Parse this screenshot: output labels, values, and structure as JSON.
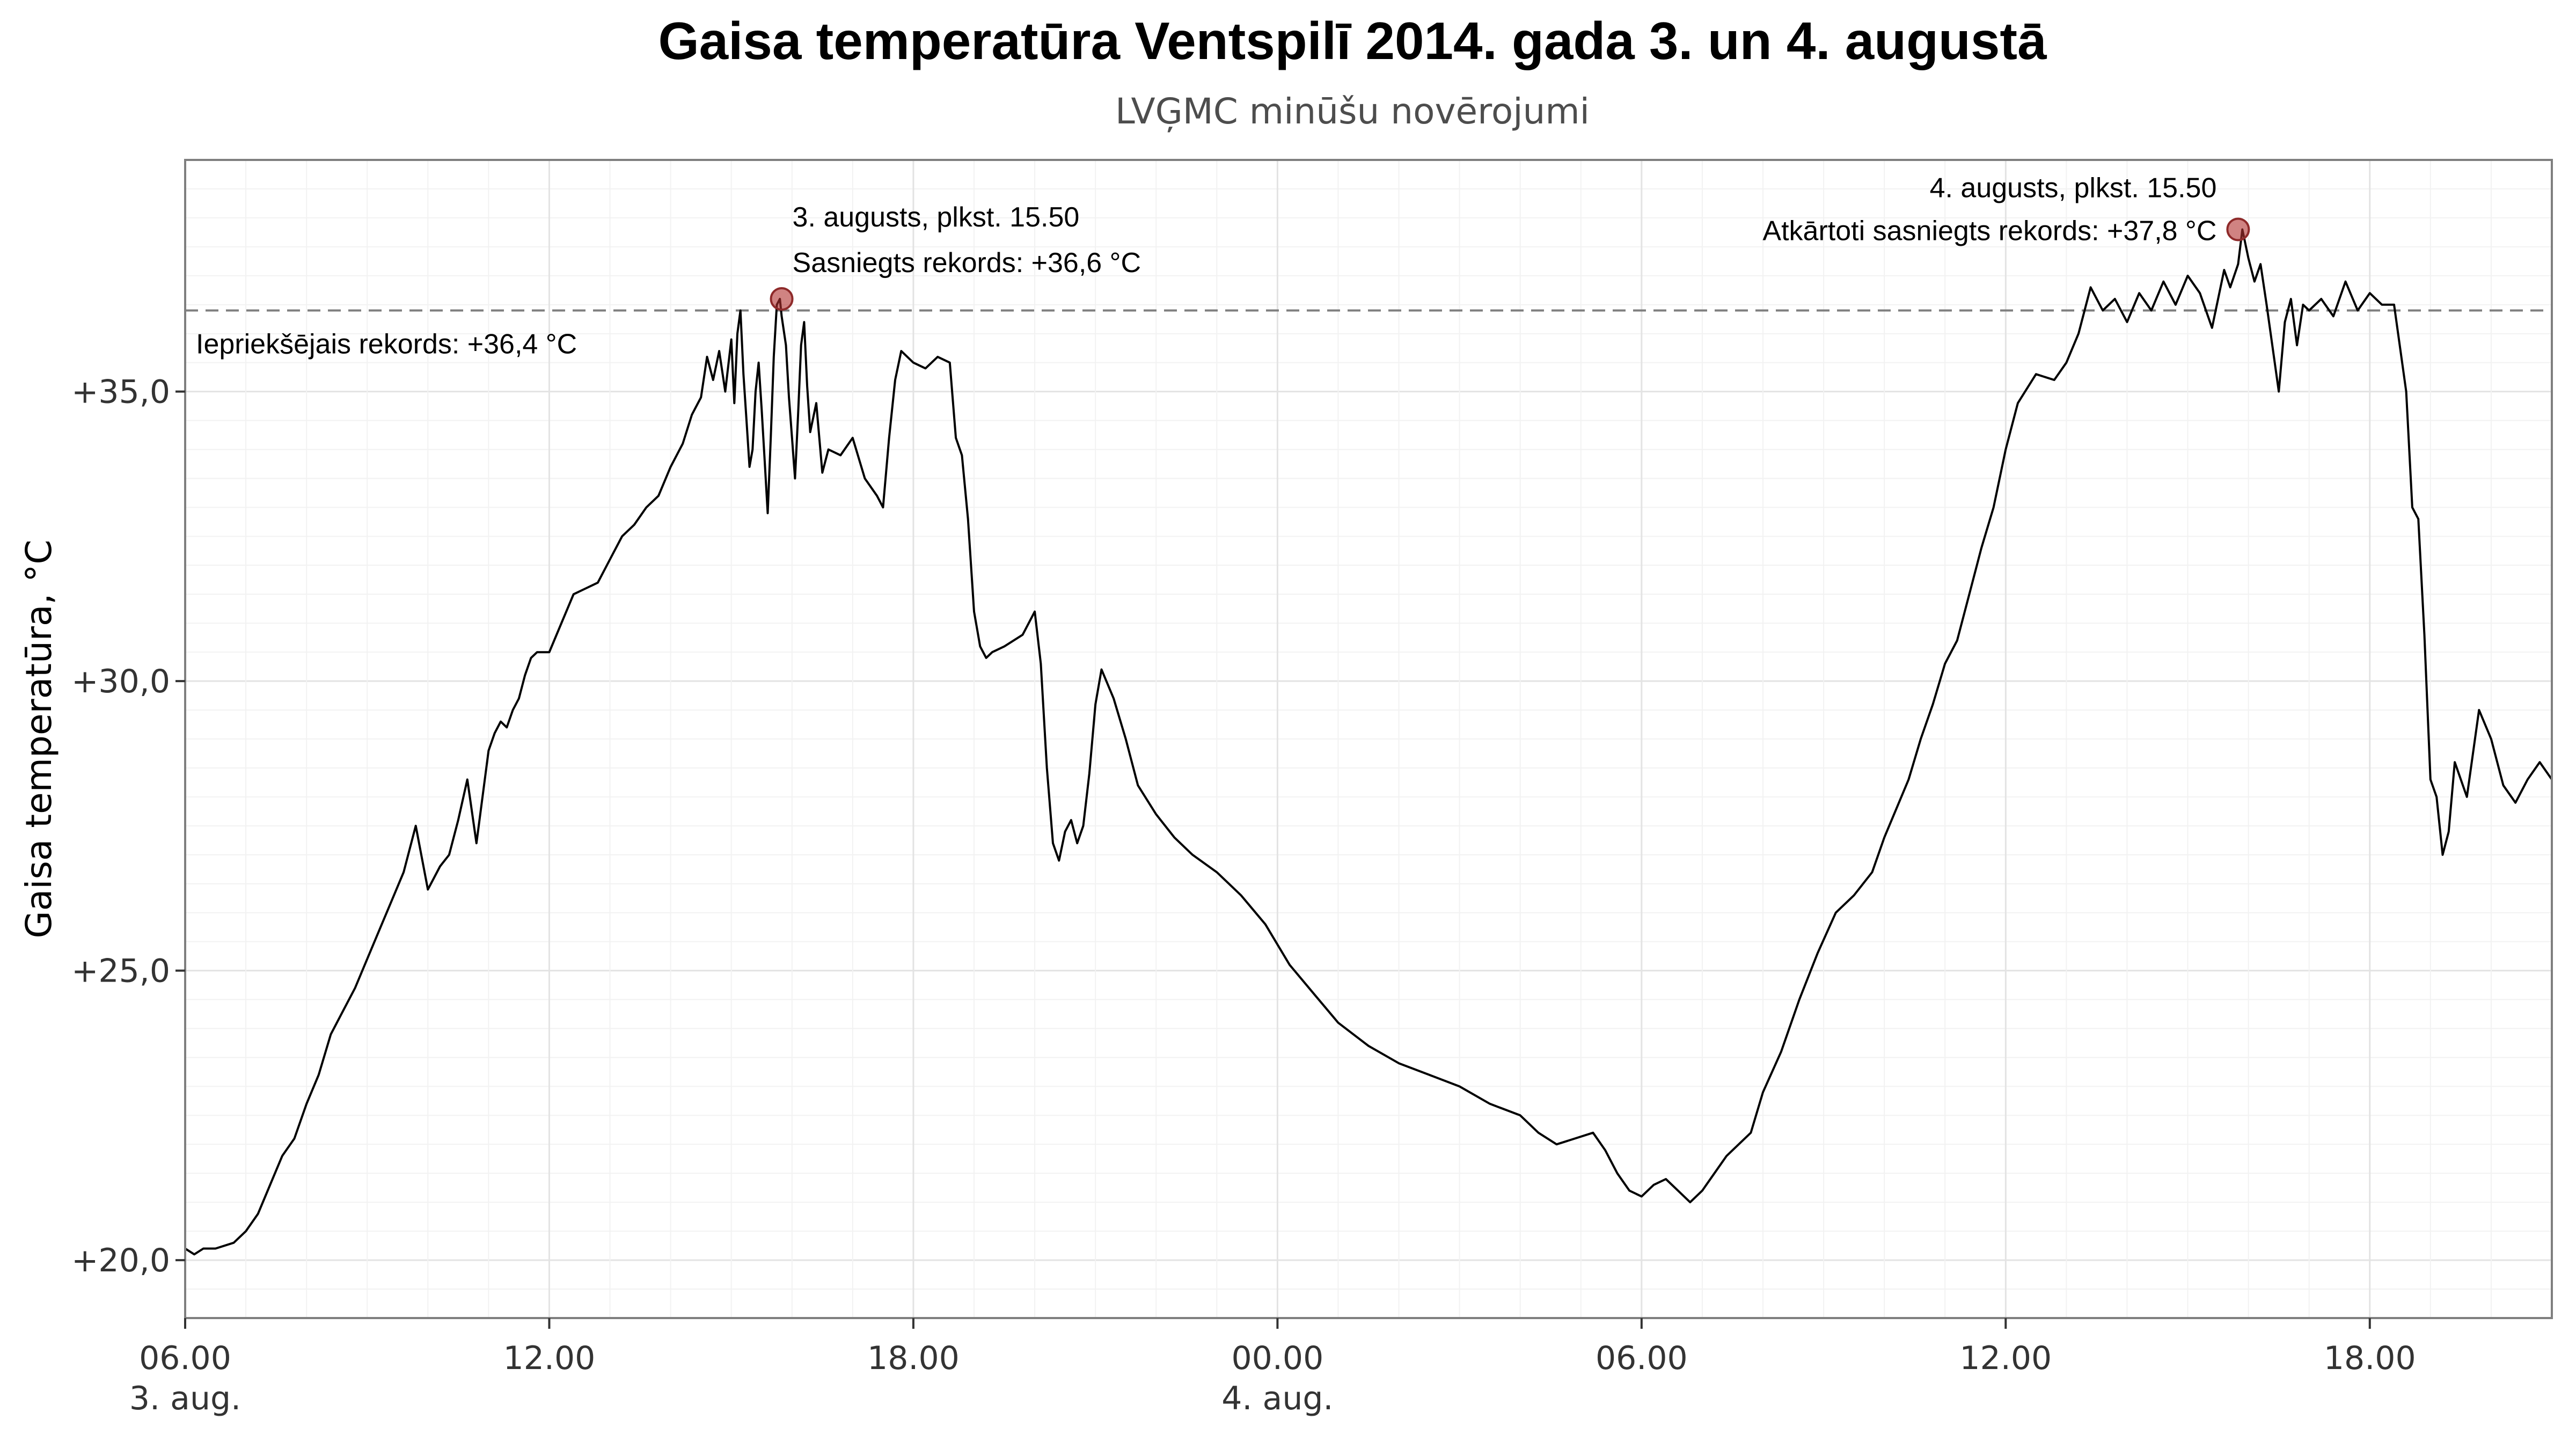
{
  "chart_data": {
    "type": "line",
    "title": "Gaisa temperatūra Ventspilī 2014. gada 3. un 4. augustā",
    "subtitle": "LVĢMC minūšu novērojumi",
    "xlabel": "",
    "ylabel": "Gaisa temperatūra, °C",
    "x_unit": "hours since 3. aug. 00.00",
    "xlim": [
      6.0,
      45.0
    ],
    "ylim": [
      19.0,
      39.0
    ],
    "grid": true,
    "y_ticks": [
      {
        "value": 20,
        "label": "+20,0"
      },
      {
        "value": 25,
        "label": "+25,0"
      },
      {
        "value": 30,
        "label": "+30,0"
      },
      {
        "value": 35,
        "label": "+35,0"
      }
    ],
    "x_ticks": [
      {
        "value": 6,
        "label": "06.00",
        "sublabel": "3. aug."
      },
      {
        "value": 12,
        "label": "12.00",
        "sublabel": ""
      },
      {
        "value": 18,
        "label": "18.00",
        "sublabel": ""
      },
      {
        "value": 24,
        "label": "00.00",
        "sublabel": "4. aug."
      },
      {
        "value": 30,
        "label": "06.00",
        "sublabel": ""
      },
      {
        "value": 36,
        "label": "12.00",
        "sublabel": ""
      },
      {
        "value": 42,
        "label": "18.00",
        "sublabel": ""
      }
    ],
    "reference_line": {
      "value": 36.4,
      "label": "Iepriekšējais rekords: +36,4 °C"
    },
    "highlight_points": [
      {
        "x": 15.83,
        "y": 36.6,
        "label_line1": "3. augusts, plkst. 15.50",
        "label_line2": "Sasniegts rekords: +36,6 °C"
      },
      {
        "x": 39.83,
        "y": 37.8,
        "label_line1": "4. augusts, plkst. 15.50",
        "label_line2": "Atkārtoti sasniegts rekords: +37,8 °C"
      }
    ],
    "series": [
      {
        "color": "#000000",
        "x": [
          6.0,
          6.15,
          6.3,
          6.5,
          6.8,
          7.0,
          7.2,
          7.4,
          7.6,
          7.8,
          8.0,
          8.2,
          8.4,
          8.6,
          8.8,
          9.0,
          9.2,
          9.4,
          9.6,
          9.8,
          10.0,
          10.2,
          10.35,
          10.5,
          10.65,
          10.8,
          11.0,
          11.1,
          11.2,
          11.3,
          11.4,
          11.5,
          11.6,
          11.7,
          11.8,
          12.0,
          12.2,
          12.4,
          12.6,
          12.8,
          13.0,
          13.2,
          13.4,
          13.6,
          13.8,
          14.0,
          14.2,
          14.35,
          14.5,
          14.6,
          14.7,
          14.8,
          14.9,
          15.0,
          15.05,
          15.1,
          15.15,
          15.2,
          15.25,
          15.3,
          15.35,
          15.4,
          15.45,
          15.5,
          15.55,
          15.6,
          15.65,
          15.7,
          15.75,
          15.8,
          15.83,
          15.9,
          15.95,
          16.0,
          16.05,
          16.1,
          16.15,
          16.2,
          16.25,
          16.3,
          16.4,
          16.5,
          16.6,
          16.8,
          17.0,
          17.2,
          17.4,
          17.5,
          17.6,
          17.7,
          17.8,
          18.0,
          18.2,
          18.4,
          18.6,
          18.7,
          18.8,
          18.9,
          19.0,
          19.1,
          19.2,
          19.3,
          19.5,
          19.8,
          20.0,
          20.1,
          20.2,
          20.3,
          20.4,
          20.5,
          20.6,
          20.7,
          20.8,
          20.9,
          21.0,
          21.1,
          21.3,
          21.5,
          21.7,
          22.0,
          22.3,
          22.6,
          23.0,
          23.4,
          23.8,
          24.2,
          24.6,
          25.0,
          25.5,
          26.0,
          26.5,
          27.0,
          27.5,
          28.0,
          28.3,
          28.6,
          28.9,
          29.2,
          29.4,
          29.6,
          29.8,
          30.0,
          30.2,
          30.4,
          30.6,
          30.8,
          31.0,
          31.2,
          31.4,
          31.6,
          31.8,
          32.0,
          32.3,
          32.6,
          32.9,
          33.2,
          33.5,
          33.8,
          34.0,
          34.2,
          34.4,
          34.6,
          34.8,
          35.0,
          35.2,
          35.4,
          35.6,
          35.8,
          36.0,
          36.2,
          36.5,
          36.8,
          37.0,
          37.2,
          37.4,
          37.6,
          37.8,
          38.0,
          38.2,
          38.4,
          38.6,
          38.8,
          39.0,
          39.2,
          39.4,
          39.6,
          39.7,
          39.83,
          39.9,
          40.0,
          40.1,
          40.2,
          40.3,
          40.5,
          40.6,
          40.7,
          40.8,
          40.9,
          41.0,
          41.2,
          41.4,
          41.6,
          41.8,
          42.0,
          42.2,
          42.4,
          42.6,
          42.7,
          42.8,
          42.9,
          43.0,
          43.1,
          43.2,
          43.3,
          43.4,
          43.6,
          43.8,
          44.0,
          44.2,
          44.4,
          44.6,
          44.8,
          45.0
        ],
        "y": [
          20.2,
          20.1,
          20.2,
          20.2,
          20.3,
          20.5,
          20.8,
          21.3,
          21.8,
          22.1,
          22.7,
          23.2,
          23.9,
          24.3,
          24.7,
          25.2,
          25.7,
          26.2,
          26.7,
          27.5,
          26.4,
          26.8,
          27.0,
          27.6,
          28.3,
          27.2,
          28.8,
          29.1,
          29.3,
          29.2,
          29.5,
          29.7,
          30.1,
          30.4,
          30.5,
          30.5,
          31.0,
          31.5,
          31.6,
          31.7,
          32.1,
          32.5,
          32.7,
          33.0,
          33.2,
          33.7,
          34.1,
          34.6,
          34.9,
          35.6,
          35.2,
          35.7,
          35.0,
          35.9,
          34.8,
          36.0,
          36.4,
          35.3,
          34.5,
          33.7,
          34.0,
          35.0,
          35.5,
          34.7,
          33.8,
          32.9,
          34.2,
          35.6,
          36.5,
          36.6,
          36.3,
          35.8,
          34.9,
          34.2,
          33.5,
          34.6,
          35.8,
          36.2,
          35.1,
          34.3,
          34.8,
          33.6,
          34.0,
          33.9,
          34.2,
          33.5,
          33.2,
          33.0,
          34.2,
          35.2,
          35.7,
          35.5,
          35.4,
          35.6,
          35.5,
          34.2,
          33.9,
          32.8,
          31.2,
          30.6,
          30.4,
          30.5,
          30.6,
          30.8,
          31.2,
          30.3,
          28.5,
          27.2,
          26.9,
          27.4,
          27.6,
          27.2,
          27.5,
          28.4,
          29.6,
          30.2,
          29.7,
          29.0,
          28.2,
          27.7,
          27.3,
          27.0,
          26.7,
          26.3,
          25.8,
          25.1,
          24.6,
          24.1,
          23.7,
          23.4,
          23.2,
          23.0,
          22.7,
          22.5,
          22.2,
          22.0,
          22.1,
          22.2,
          21.9,
          21.5,
          21.2,
          21.1,
          21.3,
          21.4,
          21.2,
          21.0,
          21.2,
          21.5,
          21.8,
          22.0,
          22.2,
          22.9,
          23.6,
          24.5,
          25.3,
          26.0,
          26.3,
          26.7,
          27.3,
          27.8,
          28.3,
          29.0,
          29.6,
          30.3,
          30.7,
          31.5,
          32.3,
          33.0,
          34.0,
          34.8,
          35.3,
          35.2,
          35.5,
          36.0,
          36.8,
          36.4,
          36.6,
          36.2,
          36.7,
          36.4,
          36.9,
          36.5,
          37.0,
          36.7,
          36.1,
          37.1,
          36.8,
          37.2,
          37.8,
          37.3,
          36.9,
          37.2,
          36.5,
          35.0,
          36.2,
          36.6,
          35.8,
          36.5,
          36.4,
          36.6,
          36.3,
          36.9,
          36.4,
          36.7,
          36.5,
          36.5,
          35.0,
          33.0,
          32.8,
          30.8,
          28.3,
          28.0,
          27.0,
          27.4,
          28.6,
          28.0,
          29.5,
          29.0,
          28.2,
          27.9,
          28.3,
          28.6,
          28.3
        ]
      }
    ]
  }
}
